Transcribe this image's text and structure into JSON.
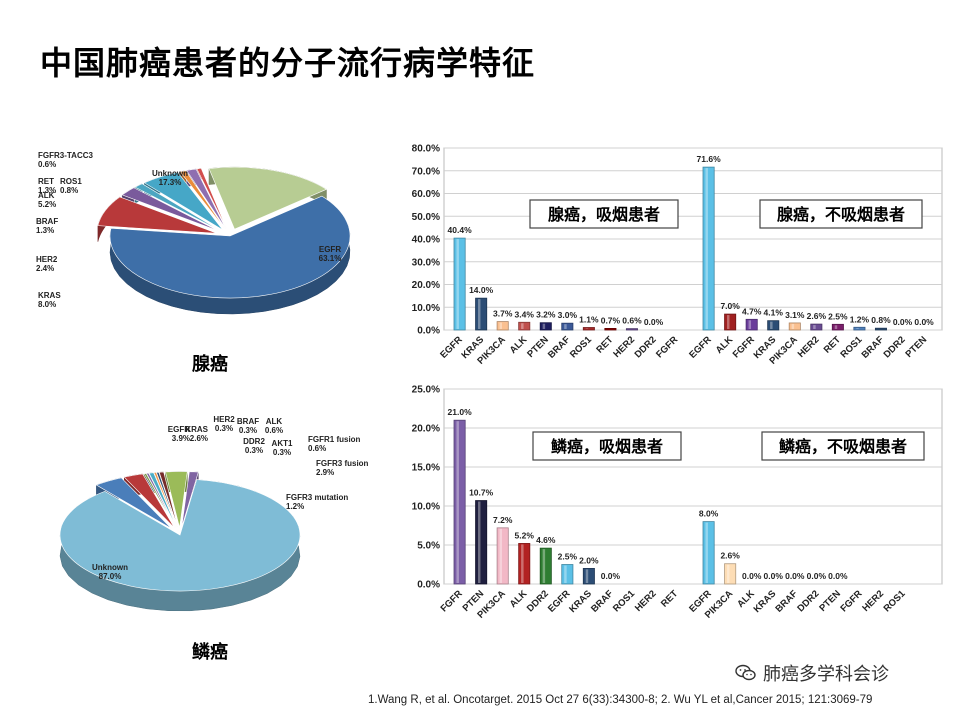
{
  "page": {
    "title": "中国肺癌患者的分子流行病学特征"
  },
  "citation": "1.Wang R, et al. Oncotarget. 2015 Oct 27 6(33):34300-8;  2. Wu YL et al,Cancer 2015; 121:3069-79",
  "watermark": {
    "text": "肺癌多学科会诊",
    "icon": "wechat-icon"
  },
  "colors": {
    "accent_blue": "#4F81BD",
    "light_blue": "#5BC0E6"
  },
  "chart_data": [
    {
      "id": "pie-adeno",
      "type": "pie",
      "title": "腺癌",
      "slices": [
        {
          "name": "EGFR",
          "value": 63.1,
          "label": "EGFR\n63.1%",
          "color": "#3E6FA8"
        },
        {
          "name": "KRAS",
          "value": 8.0,
          "label": "KRAS\n8.0%",
          "color": "#B8393A"
        },
        {
          "name": "HER2",
          "value": 2.4,
          "label": "HER2\n2.4%",
          "color": "#7A5A9C"
        },
        {
          "name": "BRAF",
          "value": 1.3,
          "label": "BRAF\n1.3%",
          "color": "#4CA6C1"
        },
        {
          "name": "ALK",
          "value": 5.2,
          "label": "ALK\n5.2%",
          "color": "#46A7C7"
        },
        {
          "name": "ROS1",
          "value": 0.8,
          "label": "ROS1\n0.8%",
          "color": "#E98C3B"
        },
        {
          "name": "RET",
          "value": 1.3,
          "label": "RET\n1.3%",
          "color": "#8E6EB0"
        },
        {
          "name": "FGFR3-TACC3",
          "value": 0.6,
          "label": "FGFR3-TACC3\n0.6%",
          "color": "#D24E4D"
        },
        {
          "name": "Unknown",
          "value": 17.3,
          "label": "Unknown\n17.3%",
          "color": "#B7CC93"
        }
      ]
    },
    {
      "id": "pie-squamous",
      "type": "pie",
      "title": "鳞癌",
      "slices": [
        {
          "name": "Unknown",
          "value": 87.0,
          "label": "Unknown\n87.0%",
          "color": "#7FBCD6"
        },
        {
          "name": "EGFR",
          "value": 3.9,
          "label": "EGFR\n3.9%",
          "color": "#4A7EBA"
        },
        {
          "name": "KRAS",
          "value": 2.6,
          "label": "KRAS\n2.6%",
          "color": "#B8393A"
        },
        {
          "name": "HER2",
          "value": 0.3,
          "label": "HER2\n0.3%",
          "color": "#7A9A4A"
        },
        {
          "name": "BRAF",
          "value": 0.3,
          "label": "BRAF\n0.3%",
          "color": "#8064A2"
        },
        {
          "name": "ALK",
          "value": 0.6,
          "label": "ALK\n0.6%",
          "color": "#4BACC6"
        },
        {
          "name": "DDR2",
          "value": 0.3,
          "label": "DDR2\n0.3%",
          "color": "#F79646"
        },
        {
          "name": "AKT1",
          "value": 0.3,
          "label": "AKT1\n0.3%",
          "color": "#2C4D75"
        },
        {
          "name": "FGFR1 fusion",
          "value": 0.6,
          "label": "FGFR1 fusion\n0.6%",
          "color": "#772C2A"
        },
        {
          "name": "FGFR3 fusion",
          "value": 2.9,
          "label": "FGFR3 fusion\n2.9%",
          "color": "#9BBB59"
        },
        {
          "name": "FGFR3 mutation",
          "value": 1.2,
          "label": "FGFR3 mutation\n1.2%",
          "color": "#8064A2"
        }
      ]
    },
    {
      "id": "bar-adeno",
      "type": "bar",
      "ylim": [
        0,
        80
      ],
      "yticks": [
        "0.0%",
        "10.0%",
        "20.0%",
        "30.0%",
        "40.0%",
        "50.0%",
        "60.0%",
        "70.0%",
        "80.0%"
      ],
      "groups": [
        {
          "label": "腺癌，吸烟患者",
          "categories": [
            "EGFR",
            "KRAS",
            "PIK3CA",
            "ALK",
            "PTEN",
            "BRAF",
            "ROS1",
            "RET",
            "HER2",
            "DDR2",
            "FGFR"
          ],
          "values": [
            40.4,
            14.0,
            3.7,
            3.4,
            3.2,
            3.0,
            1.1,
            0.7,
            0.6,
            0.0,
            null
          ],
          "value_labels": [
            "40.4%",
            "14.0%",
            "3.7%",
            "3.4%",
            "3.2%",
            "3.0%",
            "1.1%",
            "0.7%",
            "0.6%",
            "0.0%",
            ""
          ],
          "colors": [
            "#5BC0E6",
            "#2C4D75",
            "#FAC090",
            "#C0504D",
            "#1F1F5F",
            "#3B5998",
            "#A52A2A",
            "#8B0000",
            "#6A4C93",
            "#999999",
            "#999999"
          ]
        },
        {
          "label": "腺癌，不吸烟患者",
          "categories": [
            "EGFR",
            "ALK",
            "FGFR",
            "KRAS",
            "PIK3CA",
            "HER2",
            "RET",
            "ROS1",
            "BRAF",
            "DDR2",
            "PTEN"
          ],
          "values": [
            71.6,
            7.0,
            4.7,
            4.1,
            3.1,
            2.6,
            2.5,
            1.2,
            0.8,
            0.0,
            0.0
          ],
          "value_labels": [
            "71.6%",
            "7.0%",
            "4.7%",
            "4.1%",
            "3.1%",
            "2.6%",
            "2.5%",
            "1.2%",
            "0.8%",
            "0.0%",
            "0.0%"
          ],
          "colors": [
            "#5BC0E6",
            "#A02020",
            "#6A3D9A",
            "#2C4D75",
            "#FAC090",
            "#6A4C93",
            "#7A1E6A",
            "#4F81BD",
            "#2C4D75",
            "#999999",
            "#999999"
          ]
        }
      ]
    },
    {
      "id": "bar-squamous",
      "type": "bar",
      "ylim": [
        0,
        25
      ],
      "yticks": [
        "0.0%",
        "5.0%",
        "10.0%",
        "15.0%",
        "20.0%",
        "25.0%"
      ],
      "groups": [
        {
          "label": "鳞癌，吸烟患者",
          "categories": [
            "FGFR",
            "PTEN",
            "PIK3CA",
            "ALK",
            "DDR2",
            "EGFR",
            "KRAS",
            "BRAF",
            "ROS1",
            "HER2",
            "RET"
          ],
          "values": [
            21.0,
            10.7,
            7.2,
            5.2,
            4.6,
            2.5,
            2.0,
            0.0,
            null,
            null,
            null
          ],
          "value_labels": [
            "21.0%",
            "10.7%",
            "7.2%",
            "5.2%",
            "4.6%",
            "2.5%",
            "2.0%",
            "0.0%",
            "",
            "",
            ""
          ],
          "colors": [
            "#7B5EA7",
            "#1F1F3F",
            "#F2B8C6",
            "#B22222",
            "#2E7D32",
            "#5BC0E6",
            "#2C4D75",
            "#999999",
            "#999999",
            "#999999",
            "#999999"
          ]
        },
        {
          "label": "鳞癌，不吸烟患者",
          "categories": [
            "EGFR",
            "PIK3CA",
            "ALK",
            "KRAS",
            "BRAF",
            "DDR2",
            "PTEN",
            "FGFR",
            "HER2",
            "ROS1"
          ],
          "values": [
            8.0,
            2.6,
            0.0,
            0.0,
            0.0,
            0.0,
            0.0,
            null,
            null,
            null
          ],
          "value_labels": [
            "8.0%",
            "2.6%",
            "0.0%",
            "0.0%",
            "0.0%",
            "0.0%",
            "0.0%",
            "",
            "",
            ""
          ],
          "colors": [
            "#5BC0E6",
            "#FDDDB5",
            "#999999",
            "#999999",
            "#999999",
            "#999999",
            "#999999",
            "#999999",
            "#999999",
            "#999999"
          ]
        }
      ]
    }
  ]
}
